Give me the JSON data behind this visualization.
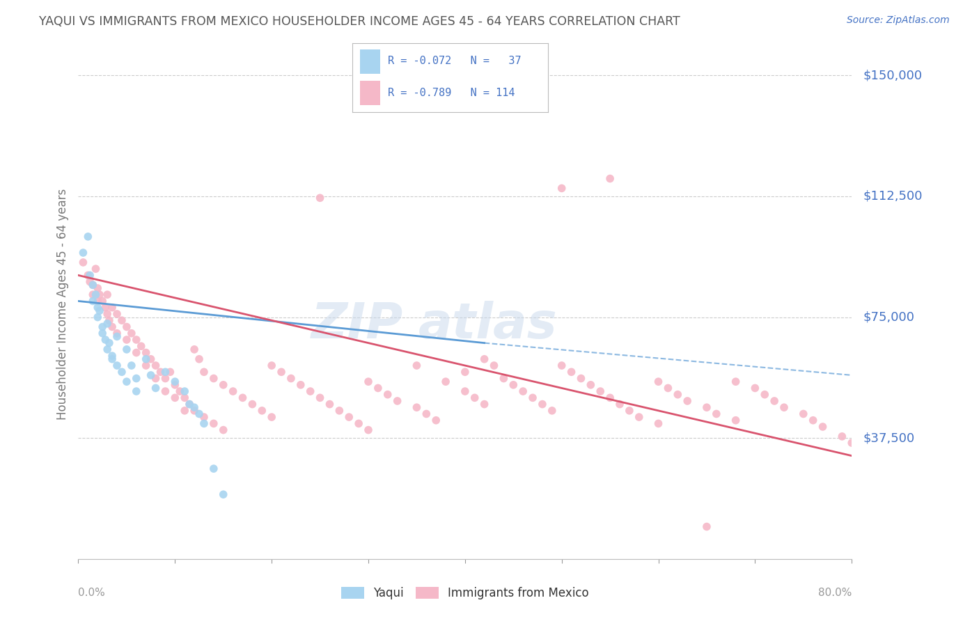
{
  "title": "YAQUI VS IMMIGRANTS FROM MEXICO HOUSEHOLDER INCOME AGES 45 - 64 YEARS CORRELATION CHART",
  "source": "Source: ZipAtlas.com",
  "ylabel": "Householder Income Ages 45 - 64 years",
  "yticks": [
    0,
    37500,
    75000,
    112500,
    150000
  ],
  "ytick_labels": [
    "",
    "$37,500",
    "$75,000",
    "$112,500",
    "$150,000"
  ],
  "xlim": [
    0.0,
    80.0
  ],
  "ylim": [
    0,
    158000
  ],
  "legend_label_yaqui": "Yaqui",
  "legend_label_mexico": "Immigrants from Mexico",
  "yaqui_color": "#a8d4f0",
  "mexico_color": "#f5b8c8",
  "yaqui_line_color": "#5b9bd5",
  "mexico_line_color": "#d9546e",
  "watermark1": "ZIP",
  "watermark2": "atlas",
  "background_color": "#ffffff",
  "grid_color": "#cccccc",
  "title_color": "#555555",
  "axis_label_color": "#4472c4",
  "legend_R_color": "#4472c4",
  "yaqui_trend_x": [
    0,
    42
  ],
  "yaqui_trend_y": [
    80000,
    67000
  ],
  "mexico_trend_x": [
    0,
    80
  ],
  "mexico_trend_y": [
    88000,
    32000
  ],
  "dash_trend_x": [
    42,
    80
  ],
  "dash_trend_y": [
    67000,
    57000
  ],
  "yaqui_scatter": [
    [
      0.5,
      95000
    ],
    [
      1.0,
      100000
    ],
    [
      1.2,
      88000
    ],
    [
      1.5,
      85000
    ],
    [
      1.5,
      80000
    ],
    [
      1.8,
      82000
    ],
    [
      2.0,
      78000
    ],
    [
      2.0,
      75000
    ],
    [
      2.2,
      77000
    ],
    [
      2.5,
      72000
    ],
    [
      2.5,
      70000
    ],
    [
      2.8,
      68000
    ],
    [
      3.0,
      73000
    ],
    [
      3.0,
      65000
    ],
    [
      3.2,
      67000
    ],
    [
      3.5,
      63000
    ],
    [
      3.5,
      62000
    ],
    [
      4.0,
      69000
    ],
    [
      4.0,
      60000
    ],
    [
      4.5,
      58000
    ],
    [
      5.0,
      65000
    ],
    [
      5.0,
      55000
    ],
    [
      5.5,
      60000
    ],
    [
      6.0,
      56000
    ],
    [
      6.0,
      52000
    ],
    [
      7.0,
      62000
    ],
    [
      7.5,
      57000
    ],
    [
      8.0,
      53000
    ],
    [
      9.0,
      58000
    ],
    [
      10.0,
      55000
    ],
    [
      11.0,
      52000
    ],
    [
      11.5,
      48000
    ],
    [
      12.0,
      47000
    ],
    [
      12.5,
      45000
    ],
    [
      13.0,
      42000
    ],
    [
      14.0,
      28000
    ],
    [
      15.0,
      20000
    ]
  ],
  "mexico_scatter": [
    [
      0.5,
      92000
    ],
    [
      1.0,
      88000
    ],
    [
      1.2,
      86000
    ],
    [
      1.5,
      85000
    ],
    [
      1.5,
      82000
    ],
    [
      1.8,
      90000
    ],
    [
      2.0,
      84000
    ],
    [
      2.0,
      80000
    ],
    [
      2.2,
      82000
    ],
    [
      2.5,
      80000
    ],
    [
      2.8,
      78000
    ],
    [
      3.0,
      76000
    ],
    [
      3.0,
      82000
    ],
    [
      3.2,
      74000
    ],
    [
      3.5,
      78000
    ],
    [
      3.5,
      72000
    ],
    [
      4.0,
      76000
    ],
    [
      4.0,
      70000
    ],
    [
      4.5,
      74000
    ],
    [
      5.0,
      72000
    ],
    [
      5.0,
      68000
    ],
    [
      5.5,
      70000
    ],
    [
      6.0,
      68000
    ],
    [
      6.0,
      64000
    ],
    [
      6.5,
      66000
    ],
    [
      7.0,
      64000
    ],
    [
      7.0,
      60000
    ],
    [
      7.5,
      62000
    ],
    [
      8.0,
      60000
    ],
    [
      8.0,
      56000
    ],
    [
      8.5,
      58000
    ],
    [
      9.0,
      56000
    ],
    [
      9.0,
      52000
    ],
    [
      9.5,
      58000
    ],
    [
      10.0,
      54000
    ],
    [
      10.0,
      50000
    ],
    [
      10.5,
      52000
    ],
    [
      11.0,
      50000
    ],
    [
      11.0,
      46000
    ],
    [
      11.5,
      48000
    ],
    [
      12.0,
      46000
    ],
    [
      12.0,
      65000
    ],
    [
      12.5,
      62000
    ],
    [
      13.0,
      58000
    ],
    [
      13.0,
      44000
    ],
    [
      14.0,
      56000
    ],
    [
      14.0,
      42000
    ],
    [
      15.0,
      54000
    ],
    [
      15.0,
      40000
    ],
    [
      16.0,
      52000
    ],
    [
      17.0,
      50000
    ],
    [
      18.0,
      48000
    ],
    [
      19.0,
      46000
    ],
    [
      20.0,
      60000
    ],
    [
      20.0,
      44000
    ],
    [
      21.0,
      58000
    ],
    [
      22.0,
      56000
    ],
    [
      23.0,
      54000
    ],
    [
      24.0,
      52000
    ],
    [
      25.0,
      50000
    ],
    [
      25.0,
      112000
    ],
    [
      26.0,
      48000
    ],
    [
      27.0,
      46000
    ],
    [
      28.0,
      44000
    ],
    [
      29.0,
      42000
    ],
    [
      30.0,
      55000
    ],
    [
      30.0,
      40000
    ],
    [
      31.0,
      53000
    ],
    [
      32.0,
      51000
    ],
    [
      33.0,
      49000
    ],
    [
      35.0,
      60000
    ],
    [
      35.0,
      47000
    ],
    [
      36.0,
      45000
    ],
    [
      37.0,
      43000
    ],
    [
      38.0,
      55000
    ],
    [
      40.0,
      58000
    ],
    [
      40.0,
      52000
    ],
    [
      41.0,
      50000
    ],
    [
      42.0,
      62000
    ],
    [
      42.0,
      48000
    ],
    [
      43.0,
      60000
    ],
    [
      44.0,
      56000
    ],
    [
      45.0,
      54000
    ],
    [
      46.0,
      52000
    ],
    [
      47.0,
      50000
    ],
    [
      48.0,
      48000
    ],
    [
      49.0,
      46000
    ],
    [
      50.0,
      115000
    ],
    [
      50.0,
      60000
    ],
    [
      51.0,
      58000
    ],
    [
      52.0,
      56000
    ],
    [
      53.0,
      54000
    ],
    [
      54.0,
      52000
    ],
    [
      55.0,
      118000
    ],
    [
      55.0,
      50000
    ],
    [
      56.0,
      48000
    ],
    [
      57.0,
      46000
    ],
    [
      58.0,
      44000
    ],
    [
      60.0,
      55000
    ],
    [
      60.0,
      42000
    ],
    [
      61.0,
      53000
    ],
    [
      62.0,
      51000
    ],
    [
      63.0,
      49000
    ],
    [
      65.0,
      47000
    ],
    [
      66.0,
      45000
    ],
    [
      68.0,
      55000
    ],
    [
      68.0,
      43000
    ],
    [
      70.0,
      53000
    ],
    [
      71.0,
      51000
    ],
    [
      72.0,
      49000
    ],
    [
      73.0,
      47000
    ],
    [
      75.0,
      45000
    ],
    [
      76.0,
      43000
    ],
    [
      77.0,
      41000
    ],
    [
      79.0,
      38000
    ],
    [
      80.0,
      36000
    ],
    [
      65.0,
      10000
    ]
  ]
}
